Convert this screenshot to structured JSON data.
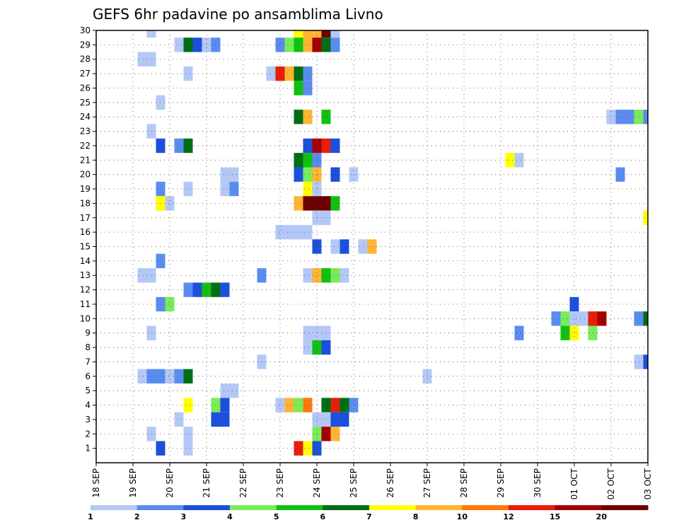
{
  "chart_data": {
    "type": "heatmap",
    "title": "GEFS 6hr padavine po ansamblima Livno",
    "x_tick_labels": [
      "18 SEP",
      "19 SEP",
      "20 SEP",
      "21 SEP",
      "22 SEP",
      "23 SEP",
      "24 SEP",
      "25 SEP",
      "26 SEP",
      "27 SEP",
      "28 SEP",
      "29 SEP",
      "30 SEP",
      "01 OCT",
      "02 OCT",
      "03 OCT"
    ],
    "y_tick_labels": [
      "1",
      "2",
      "3",
      "4",
      "5",
      "6",
      "7",
      "8",
      "9",
      "10",
      "11",
      "12",
      "13",
      "14",
      "15",
      "16",
      "17",
      "18",
      "19",
      "20",
      "21",
      "22",
      "23",
      "24",
      "25",
      "26",
      "27",
      "28",
      "29",
      "30"
    ],
    "xlim": [
      0,
      60
    ],
    "ylim": [
      0,
      30
    ],
    "grid": true,
    "colorbar": {
      "levels": [
        "1",
        "2",
        "3",
        "4",
        "5",
        "6",
        "7",
        "8",
        "10",
        "12",
        "15",
        "20"
      ],
      "colors": [
        "#b4c8f7",
        "#5a8cf0",
        "#1c50dc",
        "#78ec5a",
        "#12c012",
        "#006e14",
        "#ffff00",
        "#ffb432",
        "#ff780a",
        "#e61e0a",
        "#a50000",
        "#6e0000"
      ]
    },
    "cells": [
      [
        30,
        6,
        0
      ],
      [
        30,
        22,
        6
      ],
      [
        30,
        23,
        7
      ],
      [
        30,
        24,
        7
      ],
      [
        30,
        25,
        11
      ],
      [
        30,
        26,
        0
      ],
      [
        29,
        9,
        0
      ],
      [
        29,
        10,
        5
      ],
      [
        29,
        11,
        2
      ],
      [
        29,
        12,
        0
      ],
      [
        29,
        13,
        1
      ],
      [
        29,
        20,
        1
      ],
      [
        29,
        21,
        3
      ],
      [
        29,
        22,
        4
      ],
      [
        29,
        23,
        7
      ],
      [
        29,
        24,
        10
      ],
      [
        29,
        25,
        5
      ],
      [
        29,
        26,
        1
      ],
      [
        28,
        5,
        0
      ],
      [
        28,
        6,
        0
      ],
      [
        27,
        10,
        0
      ],
      [
        27,
        19,
        0
      ],
      [
        27,
        20,
        9
      ],
      [
        27,
        21,
        7
      ],
      [
        27,
        22,
        5
      ],
      [
        27,
        23,
        1
      ],
      [
        26,
        22,
        4
      ],
      [
        26,
        23,
        1
      ],
      [
        25,
        7,
        0
      ],
      [
        24,
        22,
        5
      ],
      [
        24,
        23,
        7
      ],
      [
        24,
        25,
        4
      ],
      [
        24,
        56,
        0
      ],
      [
        24,
        57,
        1
      ],
      [
        24,
        58,
        1
      ],
      [
        24,
        59,
        3
      ],
      [
        24,
        60,
        1
      ],
      [
        23,
        6,
        0
      ],
      [
        22,
        7,
        2
      ],
      [
        22,
        9,
        1
      ],
      [
        22,
        10,
        5
      ],
      [
        22,
        23,
        2
      ],
      [
        22,
        24,
        10
      ],
      [
        22,
        25,
        9
      ],
      [
        22,
        26,
        2
      ],
      [
        21,
        22,
        5
      ],
      [
        21,
        23,
        4
      ],
      [
        21,
        24,
        1
      ],
      [
        21,
        45,
        6
      ],
      [
        21,
        46,
        0
      ],
      [
        20,
        14,
        0
      ],
      [
        20,
        15,
        0
      ],
      [
        20,
        22,
        2
      ],
      [
        20,
        23,
        3
      ],
      [
        20,
        24,
        7
      ],
      [
        20,
        26,
        2
      ],
      [
        20,
        28,
        0
      ],
      [
        20,
        57,
        1
      ],
      [
        19,
        7,
        1
      ],
      [
        19,
        10,
        0
      ],
      [
        19,
        14,
        0
      ],
      [
        19,
        15,
        1
      ],
      [
        19,
        23,
        6
      ],
      [
        19,
        24,
        0
      ],
      [
        18,
        7,
        6
      ],
      [
        18,
        8,
        0
      ],
      [
        18,
        22,
        7
      ],
      [
        18,
        23,
        11
      ],
      [
        18,
        24,
        11
      ],
      [
        18,
        25,
        11
      ],
      [
        18,
        26,
        4
      ],
      [
        17,
        24,
        0
      ],
      [
        17,
        25,
        0
      ],
      [
        17,
        60,
        6
      ],
      [
        16,
        20,
        0
      ],
      [
        16,
        21,
        0
      ],
      [
        16,
        22,
        0
      ],
      [
        16,
        23,
        0
      ],
      [
        15,
        24,
        2
      ],
      [
        15,
        26,
        0
      ],
      [
        15,
        27,
        2
      ],
      [
        15,
        29,
        0
      ],
      [
        15,
        30,
        7
      ],
      [
        14,
        7,
        1
      ],
      [
        13,
        5,
        0
      ],
      [
        13,
        6,
        0
      ],
      [
        13,
        18,
        1
      ],
      [
        13,
        23,
        0
      ],
      [
        13,
        24,
        7
      ],
      [
        13,
        25,
        4
      ],
      [
        13,
        26,
        3
      ],
      [
        13,
        27,
        0
      ],
      [
        12,
        10,
        1
      ],
      [
        12,
        11,
        2
      ],
      [
        12,
        12,
        4
      ],
      [
        12,
        13,
        5
      ],
      [
        12,
        14,
        2
      ],
      [
        11,
        7,
        1
      ],
      [
        11,
        8,
        3
      ],
      [
        11,
        52,
        2
      ],
      [
        10,
        50,
        1
      ],
      [
        10,
        51,
        3
      ],
      [
        10,
        52,
        0
      ],
      [
        10,
        53,
        0
      ],
      [
        10,
        54,
        9
      ],
      [
        10,
        55,
        10
      ],
      [
        10,
        59,
        1
      ],
      [
        10,
        60,
        5
      ],
      [
        9,
        6,
        0
      ],
      [
        9,
        23,
        0
      ],
      [
        9,
        24,
        0
      ],
      [
        9,
        25,
        0
      ],
      [
        9,
        46,
        1
      ],
      [
        9,
        51,
        4
      ],
      [
        9,
        52,
        6
      ],
      [
        9,
        54,
        3
      ],
      [
        8,
        23,
        0
      ],
      [
        8,
        24,
        4
      ],
      [
        8,
        25,
        2
      ],
      [
        7,
        18,
        0
      ],
      [
        7,
        59,
        0
      ],
      [
        7,
        60,
        2
      ],
      [
        6,
        5,
        0
      ],
      [
        6,
        6,
        1
      ],
      [
        6,
        7,
        1
      ],
      [
        6,
        8,
        0
      ],
      [
        6,
        9,
        1
      ],
      [
        6,
        10,
        5
      ],
      [
        6,
        36,
        0
      ],
      [
        5,
        14,
        0
      ],
      [
        5,
        15,
        0
      ],
      [
        4,
        10,
        6
      ],
      [
        4,
        13,
        3
      ],
      [
        4,
        14,
        2
      ],
      [
        4,
        20,
        0
      ],
      [
        4,
        21,
        7
      ],
      [
        4,
        22,
        3
      ],
      [
        4,
        23,
        8
      ],
      [
        4,
        25,
        5
      ],
      [
        4,
        26,
        9
      ],
      [
        4,
        27,
        5
      ],
      [
        4,
        28,
        1
      ],
      [
        3,
        9,
        0
      ],
      [
        3,
        13,
        2
      ],
      [
        3,
        14,
        2
      ],
      [
        3,
        24,
        0
      ],
      [
        3,
        25,
        0
      ],
      [
        3,
        26,
        2
      ],
      [
        3,
        27,
        2
      ],
      [
        2,
        6,
        0
      ],
      [
        2,
        10,
        0
      ],
      [
        2,
        24,
        3
      ],
      [
        2,
        25,
        10
      ],
      [
        2,
        26,
        7
      ],
      [
        1,
        7,
        2
      ],
      [
        1,
        10,
        0
      ],
      [
        1,
        22,
        9
      ],
      [
        1,
        23,
        6
      ],
      [
        1,
        24,
        2
      ]
    ]
  }
}
